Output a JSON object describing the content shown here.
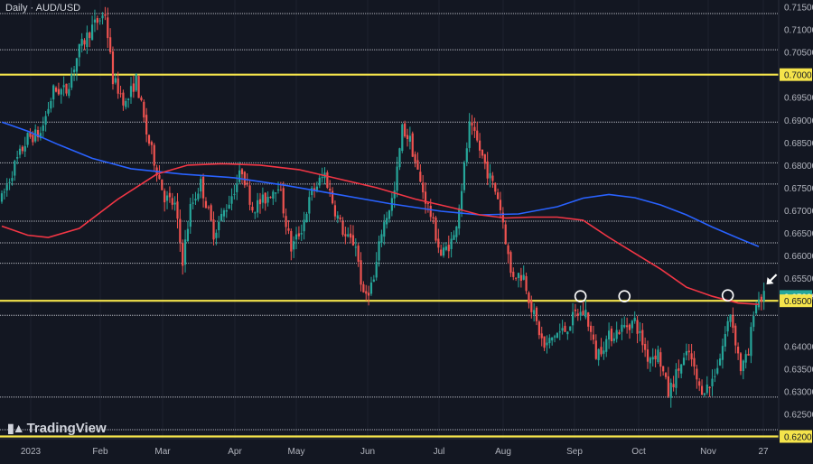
{
  "chart_data": {
    "type": "candlestick",
    "title": "Daily · AUD/USD",
    "ylim": [
      0.6195,
      0.7165
    ],
    "y_ticks": [
      "0.71500",
      "0.71000",
      "0.70500",
      "0.70000",
      "0.69500",
      "0.69000",
      "0.68500",
      "0.68000",
      "0.67500",
      "0.67000",
      "0.66500",
      "0.66000",
      "0.65500",
      "0.65095",
      "0.65000",
      "0.64000",
      "0.63500",
      "0.63000",
      "0.62500",
      "0.62000"
    ],
    "x_labels": [
      "2023",
      "Feb",
      "Mar",
      "Apr",
      "May",
      "Jun",
      "Jul",
      "Aug",
      "Sep",
      "Oct",
      "Nov",
      "27"
    ],
    "price_label": {
      "text": "0.65095",
      "value": 0.65095,
      "color": "#26a69a"
    },
    "highlight_levels": [
      {
        "value": 0.7,
        "label": "0.70000",
        "color": "#f5e44b"
      },
      {
        "value": 0.65,
        "label": "0.65000",
        "color": "#f5e44b"
      },
      {
        "value": 0.62,
        "label": "0.62000",
        "color": "#f5e44b"
      }
    ],
    "reference_levels": [
      0.7135,
      0.7055,
      0.6895,
      0.6805,
      0.6758,
      0.6676,
      0.6628,
      0.6583,
      0.6468,
      0.6287,
      0.6215
    ],
    "moving_averages": [
      {
        "color": "#2962ff",
        "points": [
          [
            0,
            0.6895
          ],
          [
            10,
            0.6875
          ],
          [
            22,
            0.6845
          ],
          [
            35,
            0.6815
          ],
          [
            50,
            0.6792
          ],
          [
            70,
            0.678
          ],
          [
            90,
            0.6772
          ],
          [
            110,
            0.6755
          ],
          [
            130,
            0.6735
          ],
          [
            150,
            0.6715
          ],
          [
            170,
            0.6698
          ],
          [
            185,
            0.669
          ],
          [
            200,
            0.6692
          ],
          [
            215,
            0.6708
          ],
          [
            225,
            0.6727
          ],
          [
            235,
            0.6735
          ],
          [
            245,
            0.6728
          ],
          [
            255,
            0.6712
          ],
          [
            265,
            0.669
          ],
          [
            275,
            0.6663
          ],
          [
            286,
            0.6636
          ],
          [
            293,
            0.662
          ]
        ]
      },
      {
        "color": "#f23645",
        "points": [
          [
            0,
            0.6665
          ],
          [
            10,
            0.6645
          ],
          [
            18,
            0.664
          ],
          [
            30,
            0.666
          ],
          [
            45,
            0.6725
          ],
          [
            60,
            0.678
          ],
          [
            72,
            0.68
          ],
          [
            85,
            0.6803
          ],
          [
            100,
            0.68
          ],
          [
            115,
            0.679
          ],
          [
            130,
            0.677
          ],
          [
            145,
            0.675
          ],
          [
            160,
            0.6725
          ],
          [
            175,
            0.6705
          ],
          [
            185,
            0.669
          ],
          [
            195,
            0.6683
          ],
          [
            205,
            0.6685
          ],
          [
            215,
            0.6685
          ],
          [
            225,
            0.6678
          ],
          [
            235,
            0.664
          ],
          [
            245,
            0.6605
          ],
          [
            255,
            0.657
          ],
          [
            265,
            0.653
          ],
          [
            275,
            0.651
          ],
          [
            285,
            0.6495
          ],
          [
            293,
            0.6492
          ]
        ]
      }
    ],
    "annotations": [
      {
        "type": "circle",
        "day": 224,
        "value": 0.651
      },
      {
        "type": "circle",
        "day": 241,
        "value": 0.651
      },
      {
        "type": "circle",
        "day": 281,
        "value": 0.6512
      },
      {
        "type": "arrow",
        "day": 296,
        "value": 0.654
      }
    ],
    "colors": {
      "background": "#131722",
      "grid": "#1e222d",
      "up": "#26a69a",
      "down": "#ef5350",
      "text": "#b2b5be"
    },
    "candle_anchors": [
      [
        0,
        0.6725
      ],
      [
        5,
        0.68
      ],
      [
        10,
        0.686
      ],
      [
        15,
        0.687
      ],
      [
        20,
        0.6965
      ],
      [
        25,
        0.6965
      ],
      [
        30,
        0.7055
      ],
      [
        35,
        0.7105
      ],
      [
        40,
        0.7135
      ],
      [
        43,
        0.699
      ],
      [
        48,
        0.6935
      ],
      [
        52,
        0.699
      ],
      [
        56,
        0.687
      ],
      [
        60,
        0.679
      ],
      [
        63,
        0.673
      ],
      [
        67,
        0.671
      ],
      [
        70,
        0.659
      ],
      [
        73,
        0.6705
      ],
      [
        77,
        0.676
      ],
      [
        82,
        0.665
      ],
      [
        88,
        0.672
      ],
      [
        93,
        0.679
      ],
      [
        97,
        0.6705
      ],
      [
        102,
        0.6725
      ],
      [
        107,
        0.676
      ],
      [
        112,
        0.6615
      ],
      [
        116,
        0.666
      ],
      [
        120,
        0.674
      ],
      [
        125,
        0.678
      ],
      [
        129,
        0.67
      ],
      [
        133,
        0.664
      ],
      [
        137,
        0.6625
      ],
      [
        140,
        0.6505
      ],
      [
        144,
        0.6545
      ],
      [
        147,
        0.6655
      ],
      [
        152,
        0.674
      ],
      [
        155,
        0.688
      ],
      [
        158,
        0.6855
      ],
      [
        162,
        0.676
      ],
      [
        166,
        0.669
      ],
      [
        170,
        0.66
      ],
      [
        175,
        0.664
      ],
      [
        178,
        0.675
      ],
      [
        181,
        0.6885
      ],
      [
        184,
        0.685
      ],
      [
        188,
        0.6785
      ],
      [
        192,
        0.673
      ],
      [
        194,
        0.6675
      ],
      [
        197,
        0.656
      ],
      [
        202,
        0.6555
      ],
      [
        205,
        0.6485
      ],
      [
        210,
        0.6395
      ],
      [
        214,
        0.6425
      ],
      [
        218,
        0.6435
      ],
      [
        222,
        0.647
      ],
      [
        226,
        0.6475
      ],
      [
        230,
        0.638
      ],
      [
        235,
        0.642
      ],
      [
        240,
        0.644
      ],
      [
        245,
        0.6455
      ],
      [
        250,
        0.6375
      ],
      [
        254,
        0.6385
      ],
      [
        258,
        0.6295
      ],
      [
        262,
        0.635
      ],
      [
        266,
        0.6385
      ],
      [
        270,
        0.6305
      ],
      [
        274,
        0.631
      ],
      [
        278,
        0.6375
      ],
      [
        282,
        0.6475
      ],
      [
        286,
        0.635
      ],
      [
        289,
        0.638
      ],
      [
        291,
        0.648
      ],
      [
        293,
        0.6505
      ],
      [
        295,
        0.6509
      ]
    ]
  }
}
